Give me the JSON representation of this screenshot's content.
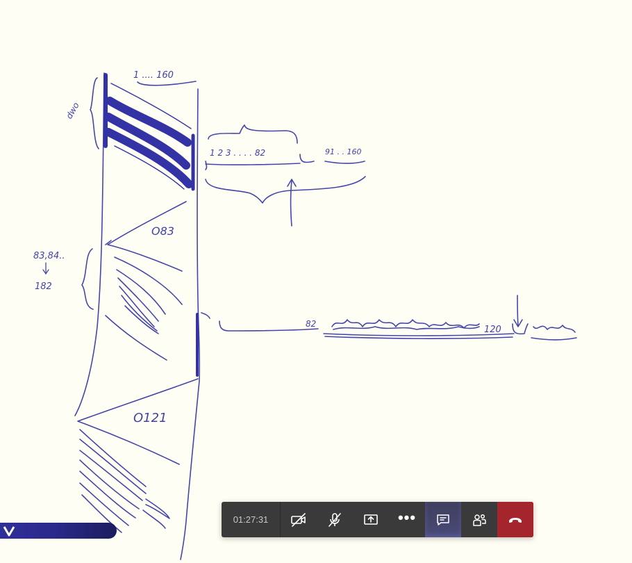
{
  "whiteboard": {
    "annotations": [
      {
        "id": "top-range",
        "text": "1 .... 160"
      },
      {
        "id": "side-label",
        "text": "dwo"
      },
      {
        "id": "seq-a",
        "text": "1 2 3 . . . . 82"
      },
      {
        "id": "seq-b",
        "text": "91 . . 160"
      },
      {
        "id": "o83",
        "text": "O83"
      },
      {
        "id": "left-a",
        "text": "83,84.."
      },
      {
        "id": "left-b",
        "text": "182"
      },
      {
        "id": "seq-c",
        "text": "82"
      },
      {
        "id": "seq-d",
        "text": "120"
      },
      {
        "id": "o121",
        "text": "O121"
      }
    ],
    "ink_color": "#3c3ca8"
  },
  "call_controls": {
    "timer": "01:27:31",
    "buttons": [
      {
        "name": "camera-off-button",
        "icon": "video-off-icon"
      },
      {
        "name": "mute-button",
        "icon": "mic-off-icon"
      },
      {
        "name": "share-screen-button",
        "icon": "share-screen-icon"
      },
      {
        "name": "more-actions-button",
        "icon": "more-icon",
        "glyph": "•••"
      },
      {
        "name": "chat-button",
        "icon": "chat-icon"
      },
      {
        "name": "participants-button",
        "icon": "people-icon"
      },
      {
        "name": "hang-up-button",
        "icon": "phone-hangup-icon"
      }
    ],
    "colors": {
      "bar": "#3a3a3a",
      "active": "#4a4a78",
      "hangup": "#a4262c"
    }
  }
}
